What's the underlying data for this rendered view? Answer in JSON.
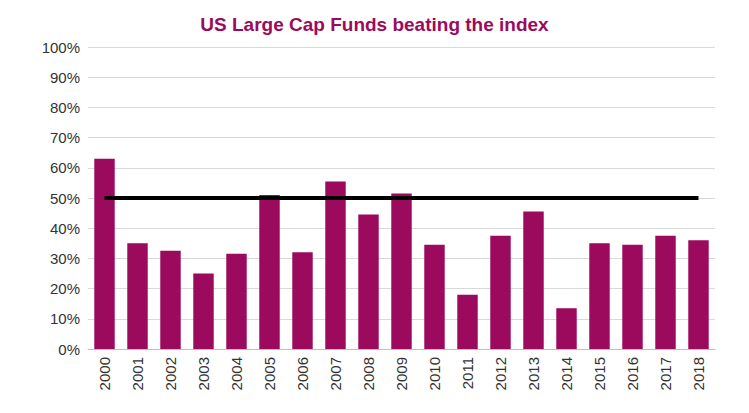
{
  "chart_data": {
    "type": "bar",
    "title": "US Large Cap Funds beating the index",
    "categories": [
      "2000",
      "2001",
      "2002",
      "2003",
      "2004",
      "2005",
      "2006",
      "2007",
      "2008",
      "2009",
      "2010",
      "2011",
      "2012",
      "2013",
      "2014",
      "2015",
      "2016",
      "2017",
      "2018"
    ],
    "values": [
      63,
      35,
      32.5,
      25,
      31.5,
      51,
      32,
      55.5,
      44.5,
      51.5,
      34.5,
      18,
      37.5,
      45.5,
      13.5,
      35,
      34.5,
      37.5,
      36
    ],
    "color": "#9c0a5e",
    "threshold": 50,
    "ylim": [
      0,
      100
    ],
    "yticks": [
      {
        "value": 0,
        "label": "0%"
      },
      {
        "value": 10,
        "label": "10%"
      },
      {
        "value": 20,
        "label": "20%"
      },
      {
        "value": 30,
        "label": "30%"
      },
      {
        "value": 40,
        "label": "40%"
      },
      {
        "value": 50,
        "label": "50%"
      },
      {
        "value": 60,
        "label": "60%"
      },
      {
        "value": 70,
        "label": "70%"
      },
      {
        "value": 80,
        "label": "80%"
      },
      {
        "value": 90,
        "label": "90%"
      },
      {
        "value": 100,
        "label": "100%"
      }
    ],
    "grid": true
  }
}
